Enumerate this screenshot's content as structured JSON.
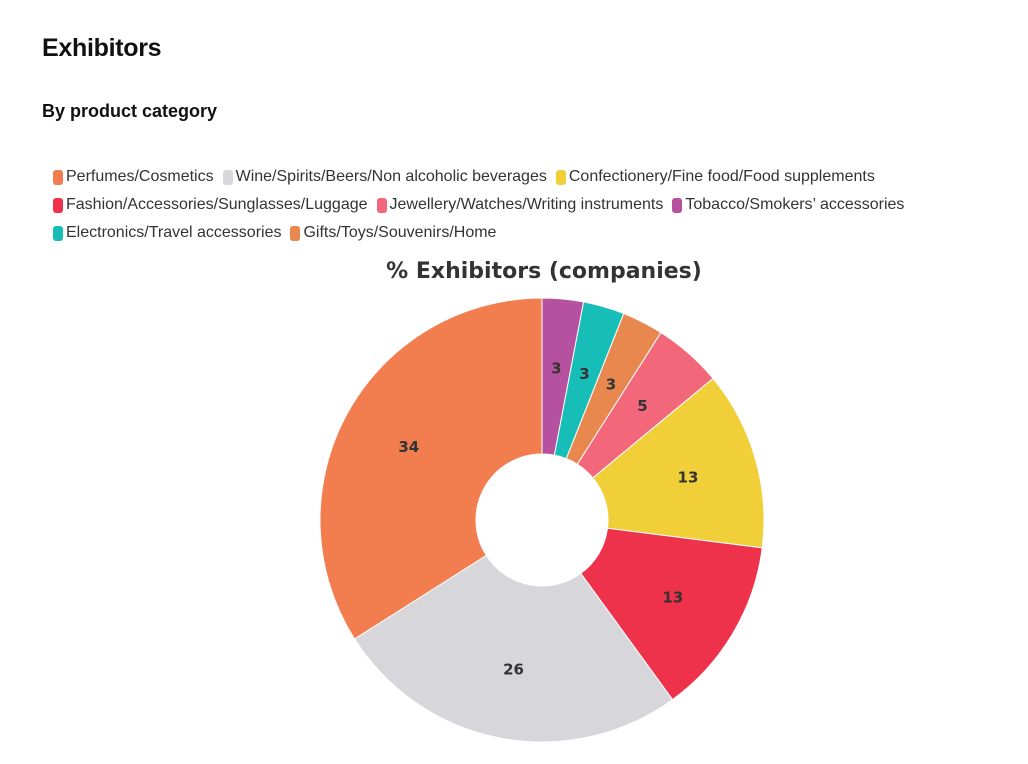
{
  "header": {
    "title": "Exhibitors",
    "subtitle": "By product category"
  },
  "chart_data": {
    "type": "pie",
    "title": "% Exhibitors (companies)",
    "legend_position": "top",
    "donut": true,
    "slices": [
      {
        "label": "Tobacco/Smokers’ accessories",
        "value": 3,
        "color": "#b5519f"
      },
      {
        "label": "Electronics/Travel accessories",
        "value": 3,
        "color": "#17bdb7"
      },
      {
        "label": "Gifts/Toys/Souvenirs/Home",
        "value": 3,
        "color": "#e8884f"
      },
      {
        "label": "Jewellery/Watches/Writing instruments",
        "value": 5,
        "color": "#f2677a"
      },
      {
        "label": "Confectionery/Fine food/Food supplements",
        "value": 13,
        "color": "#f0cf38"
      },
      {
        "label": "Fashion/Accessories/Sunglasses/Luggage",
        "value": 13,
        "color": "#ef324b"
      },
      {
        "label": "Wine/Spirits/Beers/Non alcoholic beverages",
        "value": 26,
        "color": "#d7d7db"
      },
      {
        "label": "Perfumes/Cosmetics",
        "value": 34,
        "color": "#f27d4e"
      }
    ],
    "legend": [
      {
        "label": "Perfumes/Cosmetics",
        "color": "#f27d4e"
      },
      {
        "label": "Wine/Spirits/Beers/Non alcoholic beverages",
        "color": "#d7d7db"
      },
      {
        "label": "Confectionery/Fine food/Food supplements",
        "color": "#f0cf38"
      },
      {
        "label": "Fashion/Accessories/Sunglasses/Luggage",
        "color": "#ef324b"
      },
      {
        "label": "Jewellery/Watches/Writing instruments",
        "color": "#f2677a"
      },
      {
        "label": "Tobacco/Smokers’ accessories",
        "color": "#b5519f"
      },
      {
        "label": "Electronics/Travel accessories",
        "color": "#17bdb7"
      },
      {
        "label": "Gifts/Toys/Souvenirs/Home",
        "color": "#e8884f"
      }
    ]
  }
}
